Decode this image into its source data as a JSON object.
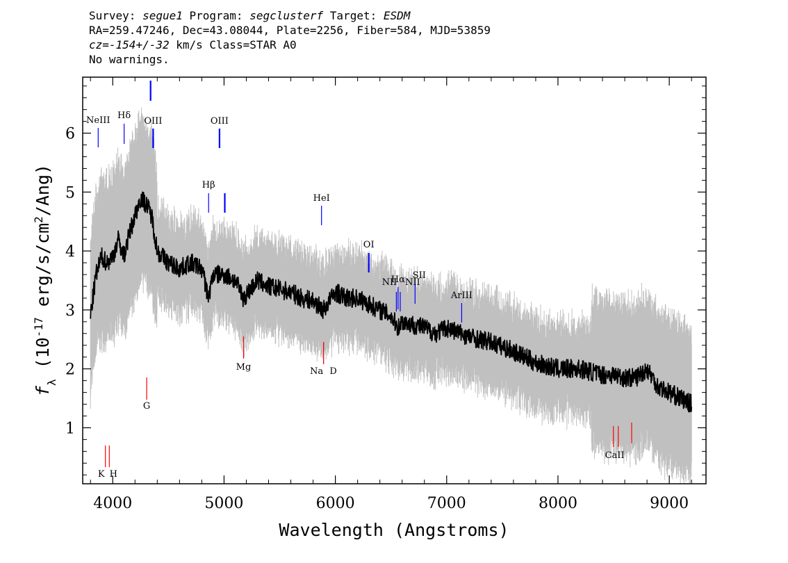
{
  "header": {
    "line1": {
      "survey_label": "Survey: ",
      "survey": "segue1",
      "program_label": " Program: ",
      "program": "segclusterf",
      "target_label": " Target: ",
      "target": "ESDM"
    },
    "line2": "RA=259.47246, Dec=43.08044, Plate=2256, Fiber=584, MJD=53859",
    "line3": {
      "cz_label": "cz=",
      "cz": "-154+/-32",
      "rest": " km/s Class=STAR A0"
    },
    "line4": "No warnings."
  },
  "chart_data": {
    "type": "line",
    "xlabel": "Wavelength (Angstroms)",
    "ylabel": {
      "prefix": "f",
      "sub": "λ",
      "open": " (10",
      "exp": "-17",
      "mid": " erg/s/cm",
      "exp2": "2",
      "close": "/Ang)"
    },
    "xlim": [
      3730,
      9330
    ],
    "ylim": [
      0.05,
      6.95
    ],
    "xticks": [
      4000,
      5000,
      6000,
      7000,
      8000,
      9000
    ],
    "yticks": [
      1,
      2,
      3,
      4,
      5,
      6
    ],
    "grid": false,
    "colors": {
      "flux": "#000000",
      "noise": "#c0c0c0",
      "emission": "#0000ff",
      "absorption": "#ff0000"
    },
    "series": [
      {
        "role": "flux",
        "x": [
          3800,
          3850,
          3900,
          3950,
          4000,
          4050,
          4100,
          4150,
          4200,
          4250,
          4300,
          4350,
          4400,
          4500,
          4600,
          4700,
          4800,
          4861,
          4900,
          5000,
          5100,
          5175,
          5300,
          5400,
          5500,
          5600,
          5700,
          5800,
          5893,
          6000,
          6100,
          6200,
          6300,
          6400,
          6500,
          6563,
          6600,
          6700,
          6800,
          6900,
          7000,
          7200,
          7400,
          7600,
          7800,
          8000,
          8200,
          8400,
          8500,
          8600,
          8700,
          8800,
          8900,
          9000,
          9100,
          9200
        ],
        "y": [
          2.9,
          3.6,
          3.9,
          3.8,
          3.9,
          4.2,
          3.9,
          4.3,
          4.6,
          4.9,
          4.8,
          4.6,
          4.0,
          3.8,
          3.7,
          3.8,
          3.7,
          3.2,
          3.6,
          3.6,
          3.5,
          3.2,
          3.5,
          3.4,
          3.35,
          3.3,
          3.2,
          3.15,
          3.0,
          3.3,
          3.2,
          3.2,
          3.1,
          3.0,
          2.9,
          2.7,
          2.8,
          2.75,
          2.7,
          2.6,
          2.7,
          2.55,
          2.45,
          2.3,
          2.1,
          2.0,
          2.0,
          1.9,
          1.9,
          1.85,
          1.85,
          2.0,
          1.7,
          1.6,
          1.5,
          1.4
        ]
      }
    ],
    "lines": [
      {
        "label": "NeIII",
        "wave": 3869,
        "kind": "emission"
      },
      {
        "label": "Hδ",
        "wave": 4102,
        "kind": "emission"
      },
      {
        "label": "",
        "wave": 4340,
        "kind": "emission"
      },
      {
        "label": "OIII",
        "wave": 4363,
        "kind": "emission"
      },
      {
        "label": "Hβ",
        "wave": 4861,
        "kind": "emission"
      },
      {
        "label": "OIII",
        "wave": 4959,
        "kind": "emission"
      },
      {
        "label": "",
        "wave": 5007,
        "kind": "emission"
      },
      {
        "label": "HeI",
        "wave": 5876,
        "kind": "emission"
      },
      {
        "label": "OI",
        "wave": 6300,
        "kind": "emission"
      },
      {
        "label": "NII",
        "wave": 6548,
        "kind": "emission"
      },
      {
        "label": "Hα",
        "wave": 6563,
        "kind": "emission"
      },
      {
        "label": "NII",
        "wave": 6583,
        "kind": "emission"
      },
      {
        "label": "SII",
        "wave": 6716,
        "kind": "emission"
      },
      {
        "label": "ArIII",
        "wave": 7135,
        "kind": "emission"
      },
      {
        "label": "K",
        "wave": 3934,
        "kind": "absorption"
      },
      {
        "label": "H",
        "wave": 3969,
        "kind": "absorption"
      },
      {
        "label": "G",
        "wave": 4305,
        "kind": "absorption"
      },
      {
        "label": "Mg",
        "wave": 5175,
        "kind": "absorption"
      },
      {
        "label": "Na",
        "wave": 5894,
        "kind": "absorption"
      },
      {
        "label": "D",
        "wave": 5894,
        "kind": "absorption"
      },
      {
        "label": "CaII",
        "wave": 8498,
        "kind": "absorption"
      },
      {
        "label": "",
        "wave": 8542,
        "kind": "absorption"
      },
      {
        "label": "",
        "wave": 8662,
        "kind": "absorption"
      }
    ]
  }
}
